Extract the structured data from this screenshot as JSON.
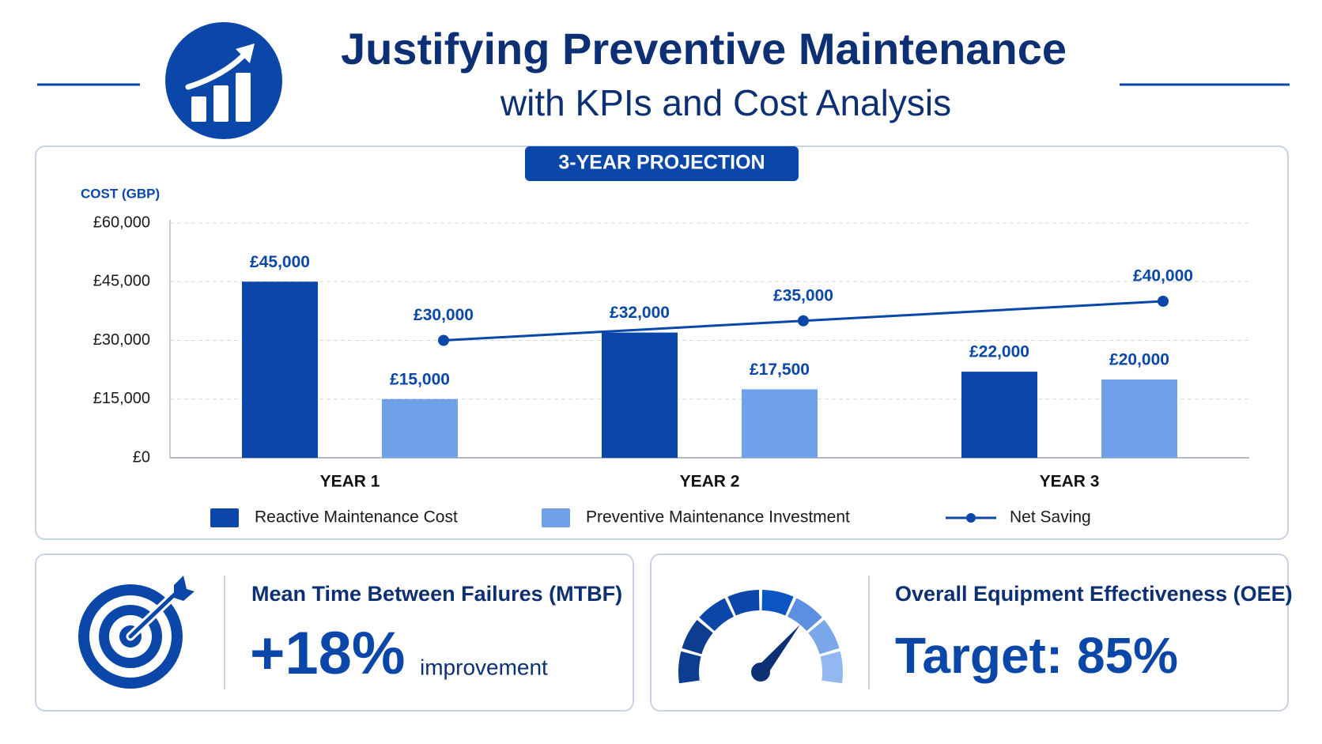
{
  "chart_data": {
    "type": "bar",
    "title": "Justifying Preventive Maintenance",
    "subtitle": "with KPIs and Cost Analysis",
    "badge": "3-YEAR PROJECTION",
    "y_label": "COST (GBP)",
    "categories": [
      "YEAR 1",
      "YEAR 2",
      "YEAR 3"
    ],
    "ylim": [
      0,
      60000
    ],
    "yticks": [
      {
        "value": 0,
        "label": "£0"
      },
      {
        "value": 15000,
        "label": "£15,000"
      },
      {
        "value": 30000,
        "label": "£30,000"
      },
      {
        "value": 45000,
        "label": "£45,000"
      },
      {
        "value": 60000,
        "label": "£60,000"
      }
    ],
    "grid": true,
    "series": [
      {
        "name": "Reactive Maintenance Cost",
        "color": "#0b47a8",
        "type": "bar",
        "values": [
          45000,
          32000,
          22000
        ],
        "value_labels": [
          "£45,000",
          "£32,000",
          "£22,000"
        ]
      },
      {
        "name": "Preventive Maintenance Investment",
        "color": "#6fa0e8",
        "type": "bar",
        "values": [
          15000,
          17500,
          20000
        ],
        "value_labels": [
          "£15,000",
          "£17,500",
          "£20,000"
        ]
      },
      {
        "name": "Net Saving",
        "color": "#0b47a8",
        "type": "line",
        "values": [
          30000,
          35000,
          40000
        ],
        "value_labels": [
          "£30,000",
          "£35,000",
          "£40,000"
        ]
      }
    ]
  },
  "kpis": [
    {
      "title": "Mean Time Between Failures (MTBF)",
      "value": "+18%",
      "note": "improvement"
    },
    {
      "title": "Overall Equipment Effectiveness (OEE)",
      "value": "Target: 85%"
    }
  ]
}
